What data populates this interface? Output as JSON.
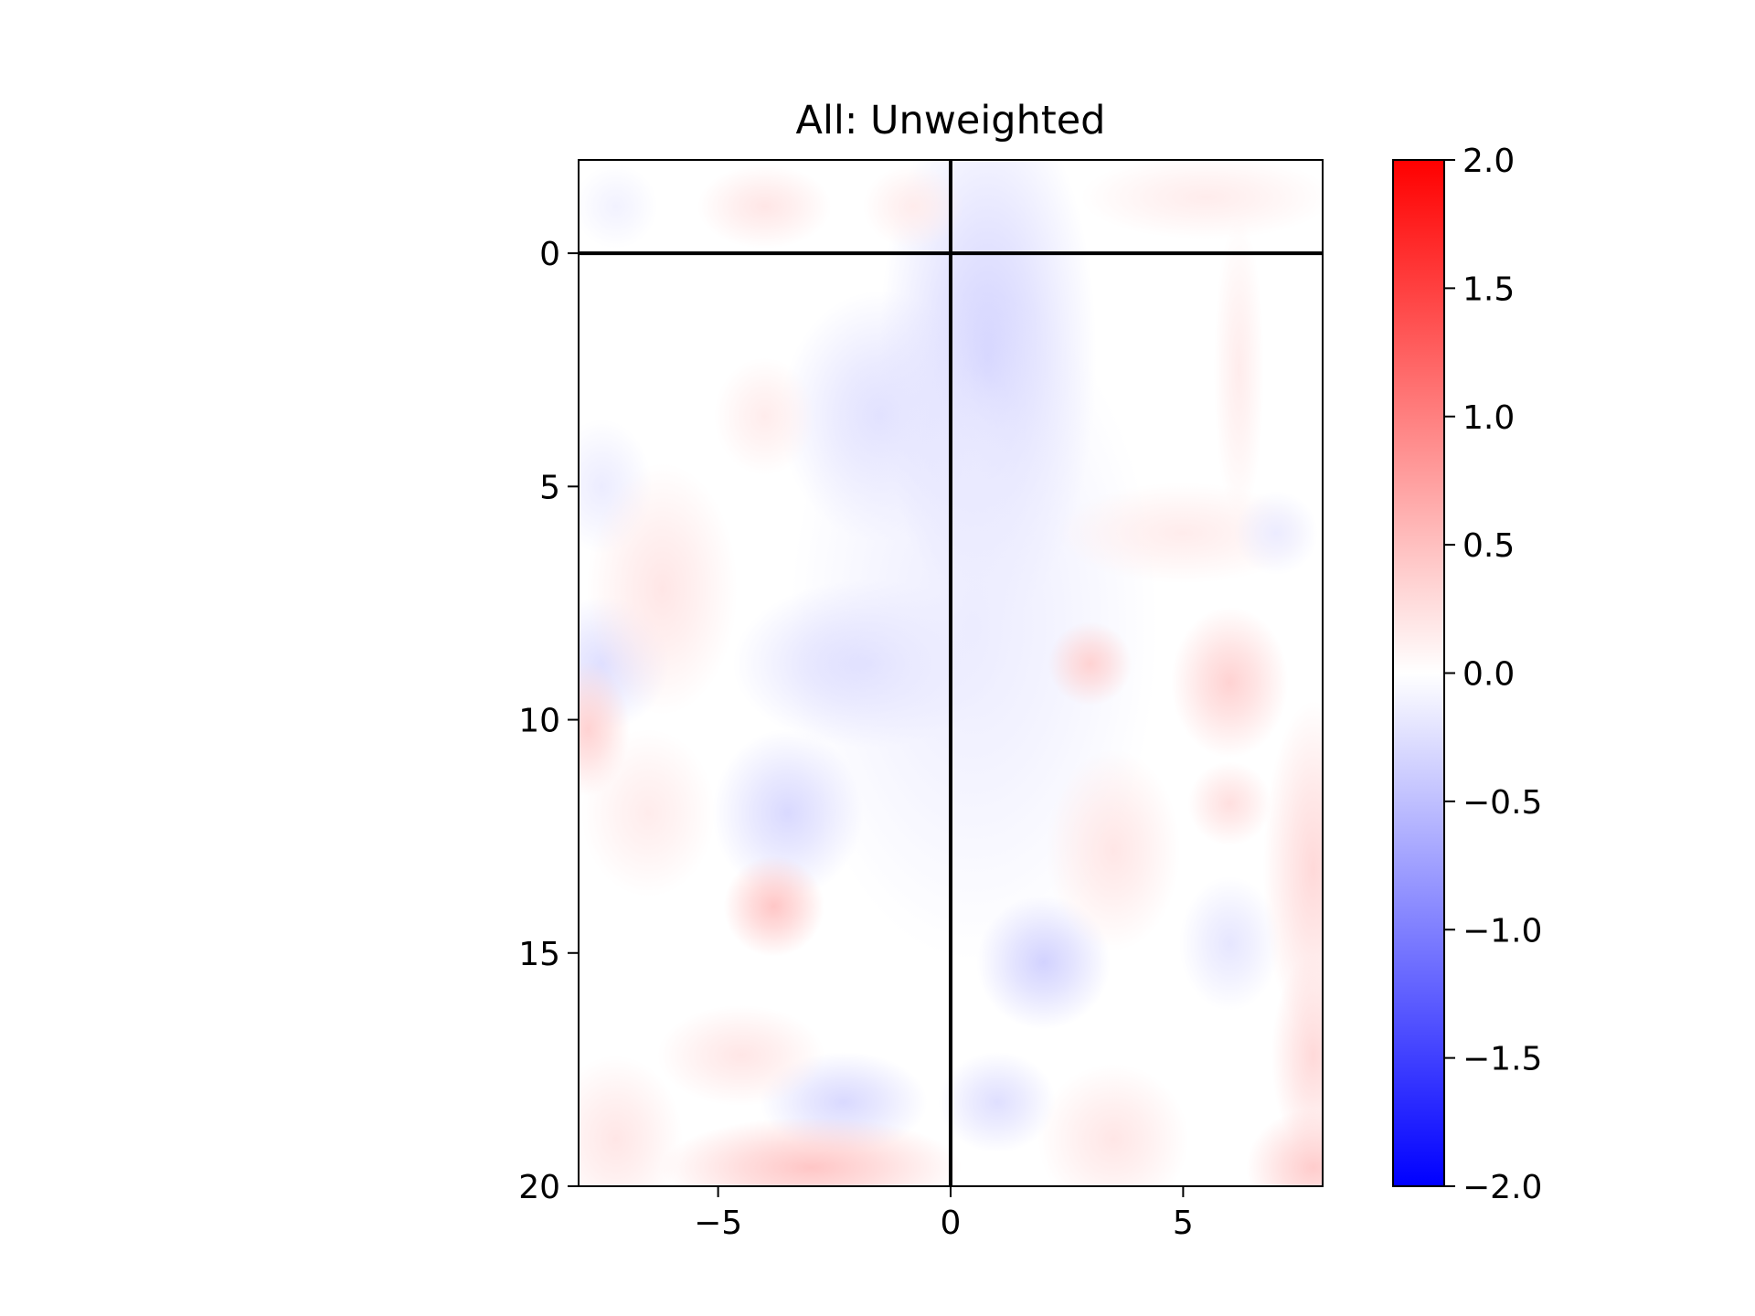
{
  "chart_data": {
    "type": "heatmap",
    "title": "All: Unweighted",
    "xlabel": "",
    "ylabel": "",
    "xlim": [
      -8,
      8
    ],
    "ylim": [
      20,
      -2
    ],
    "y_inverted": true,
    "grid": false,
    "x_ticks": [
      {
        "value": -5,
        "label": "−5"
      },
      {
        "value": 0,
        "label": "0"
      },
      {
        "value": 5,
        "label": "5"
      }
    ],
    "y_ticks": [
      {
        "value": 0,
        "label": "0"
      },
      {
        "value": 5,
        "label": "5"
      },
      {
        "value": 10,
        "label": "10"
      },
      {
        "value": 15,
        "label": "15"
      },
      {
        "value": 20,
        "label": "20"
      }
    ],
    "reference_lines": [
      {
        "orientation": "vertical",
        "value": 0,
        "color": "#000000"
      },
      {
        "orientation": "horizontal",
        "value": 0,
        "color": "#000000"
      }
    ],
    "colorbar": {
      "colormap": "bwr",
      "range": [
        -2.0,
        2.0
      ],
      "low_color": "#0000ff",
      "mid_color": "#ffffff",
      "high_color": "#ff0000",
      "ticks": [
        {
          "value": 2.0,
          "label": "2.0"
        },
        {
          "value": 1.5,
          "label": "1.5"
        },
        {
          "value": 1.0,
          "label": "1.0"
        },
        {
          "value": 0.5,
          "label": "0.5"
        },
        {
          "value": 0.0,
          "label": "0.0"
        },
        {
          "value": -0.5,
          "label": "−0.5"
        },
        {
          "value": -1.0,
          "label": "−1.0"
        },
        {
          "value": -1.5,
          "label": "−1.5"
        },
        {
          "value": -2.0,
          "label": "−2.0"
        }
      ]
    },
    "field": [
      {
        "x": 0.8,
        "y": 2.2,
        "sx": 1.3,
        "sy": 3.2,
        "v": -0.35
      },
      {
        "x": 0.3,
        "y": 4.8,
        "sx": 0.8,
        "sy": 1.3,
        "v": -0.2
      },
      {
        "x": -1.5,
        "y": 3.5,
        "sx": 1.2,
        "sy": 1.5,
        "v": -0.25
      },
      {
        "x": -1.8,
        "y": 8.8,
        "sx": 1.6,
        "sy": 1.0,
        "v": -0.3
      },
      {
        "x": 0.5,
        "y": 8.0,
        "sx": 2.2,
        "sy": 4.0,
        "v": -0.15
      },
      {
        "x": 2.0,
        "y": 15.2,
        "sx": 0.8,
        "sy": 0.8,
        "v": -0.35
      },
      {
        "x": 1.0,
        "y": 18.2,
        "sx": 0.7,
        "sy": 0.6,
        "v": -0.25
      },
      {
        "x": -2.3,
        "y": 18.2,
        "sx": 1.0,
        "sy": 0.6,
        "v": -0.3
      },
      {
        "x": -3.5,
        "y": 12.0,
        "sx": 0.9,
        "sy": 1.0,
        "v": -0.3
      },
      {
        "x": -7.5,
        "y": 8.8,
        "sx": 0.8,
        "sy": 0.8,
        "v": -0.25
      },
      {
        "x": -7.5,
        "y": 5.0,
        "sx": 0.6,
        "sy": 0.8,
        "v": -0.15
      },
      {
        "x": -6.2,
        "y": 7.2,
        "sx": 0.9,
        "sy": 1.5,
        "v": 0.2
      },
      {
        "x": -3.8,
        "y": 14.0,
        "sx": 0.6,
        "sy": 0.6,
        "v": 0.45
      },
      {
        "x": -3.0,
        "y": 19.6,
        "sx": 1.8,
        "sy": 0.6,
        "v": 0.45
      },
      {
        "x": -7.8,
        "y": 10.2,
        "sx": 0.5,
        "sy": 0.8,
        "v": 0.35
      },
      {
        "x": -7.2,
        "y": 19.0,
        "sx": 0.8,
        "sy": 1.0,
        "v": 0.2
      },
      {
        "x": -4.5,
        "y": 17.2,
        "sx": 1.0,
        "sy": 0.6,
        "v": 0.2
      },
      {
        "x": -4.0,
        "y": 3.5,
        "sx": 0.6,
        "sy": 0.7,
        "v": 0.15
      },
      {
        "x": -4.0,
        "y": -1.0,
        "sx": 0.8,
        "sy": 0.5,
        "v": 0.2
      },
      {
        "x": -0.8,
        "y": -1.0,
        "sx": 0.6,
        "sy": 0.5,
        "v": 0.15
      },
      {
        "x": 3.0,
        "y": 8.8,
        "sx": 0.5,
        "sy": 0.5,
        "v": 0.35
      },
      {
        "x": 6.0,
        "y": 9.2,
        "sx": 0.7,
        "sy": 0.9,
        "v": 0.35
      },
      {
        "x": 5.0,
        "y": 6.0,
        "sx": 1.5,
        "sy": 0.6,
        "v": 0.15
      },
      {
        "x": 3.5,
        "y": 12.8,
        "sx": 0.8,
        "sy": 1.2,
        "v": 0.2
      },
      {
        "x": 7.8,
        "y": 13.2,
        "sx": 0.6,
        "sy": 2.0,
        "v": 0.3
      },
      {
        "x": 7.8,
        "y": 17.2,
        "sx": 0.5,
        "sy": 1.2,
        "v": 0.3
      },
      {
        "x": 7.8,
        "y": 19.6,
        "sx": 0.8,
        "sy": 0.7,
        "v": 0.4
      },
      {
        "x": 3.5,
        "y": 19.0,
        "sx": 0.9,
        "sy": 0.9,
        "v": 0.2
      },
      {
        "x": 6.2,
        "y": 2.5,
        "sx": 0.3,
        "sy": 1.8,
        "v": 0.15
      },
      {
        "x": 5.5,
        "y": -1.2,
        "sx": 1.5,
        "sy": 0.5,
        "v": 0.15
      },
      {
        "x": 6.0,
        "y": 14.8,
        "sx": 0.6,
        "sy": 0.8,
        "v": -0.2
      },
      {
        "x": 6.0,
        "y": 11.8,
        "sx": 0.5,
        "sy": 0.5,
        "v": 0.25
      },
      {
        "x": 7.0,
        "y": 6.0,
        "sx": 0.5,
        "sy": 0.5,
        "v": -0.15
      },
      {
        "x": -6.5,
        "y": 12.0,
        "sx": 0.8,
        "sy": 1.0,
        "v": 0.15
      },
      {
        "x": -7.2,
        "y": -1.0,
        "sx": 0.5,
        "sy": 0.5,
        "v": -0.1
      }
    ]
  }
}
